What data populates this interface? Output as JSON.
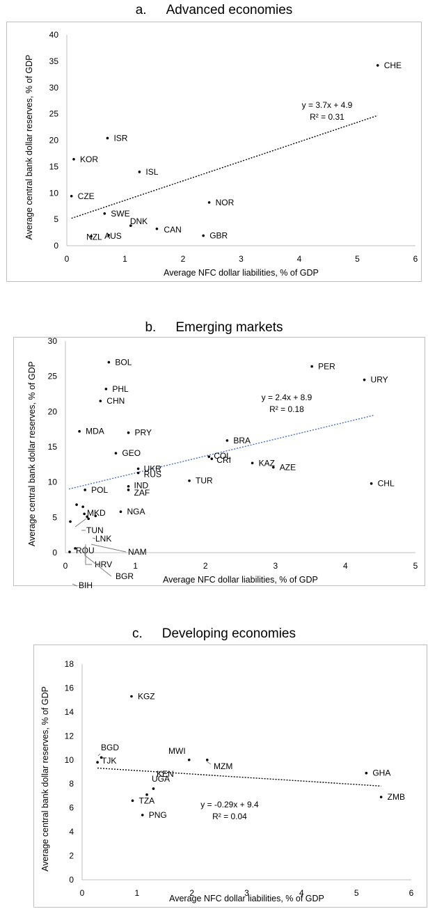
{
  "chart_data": [
    {
      "type": "scatter",
      "panel_letter": "a.",
      "title": "Advanced economies",
      "xlabel": "Average NFC dollar liabilities, % of GDP",
      "ylabel": "Average central bank dollar reserves, % of GDP",
      "xlim": [
        0,
        6
      ],
      "ylim": [
        0,
        40
      ],
      "xticks": [
        0,
        1,
        2,
        3,
        4,
        5,
        6
      ],
      "yticks": [
        0,
        5,
        10,
        15,
        20,
        25,
        30,
        35,
        40
      ],
      "grid": false,
      "points": [
        {
          "label": "CHE",
          "x": 5.35,
          "y": 34.2
        },
        {
          "label": "ISR",
          "x": 0.7,
          "y": 20.4
        },
        {
          "label": "KOR",
          "x": 0.12,
          "y": 16.4
        },
        {
          "label": "ISL",
          "x": 1.25,
          "y": 14.0
        },
        {
          "label": "CZE",
          "x": 0.08,
          "y": 9.4
        },
        {
          "label": "NOR",
          "x": 2.45,
          "y": 8.2
        },
        {
          "label": "SWE",
          "x": 0.65,
          "y": 6.1
        },
        {
          "label": "DNK",
          "x": 1.1,
          "y": 3.8
        },
        {
          "label": "CAN",
          "x": 1.55,
          "y": 3.2
        },
        {
          "label": "NZL",
          "x": 0.42,
          "y": 1.8
        },
        {
          "label": "AUS",
          "x": 0.72,
          "y": 2.0
        },
        {
          "label": "GBR",
          "x": 2.35,
          "y": 1.9
        }
      ],
      "trendline": {
        "slope": 3.7,
        "intercept": 4.9,
        "x_range": [
          0.08,
          5.35
        ],
        "color": "#000000",
        "equation": "y = 3.7x + 4.9",
        "r2": "R² = 0.31"
      }
    },
    {
      "type": "scatter",
      "panel_letter": "b.",
      "title": "Emerging markets",
      "xlabel": "Average NFC dollar liabilities, % of GDP",
      "ylabel": "Average central bank dollar reserves, % of GDP",
      "xlim": [
        0,
        5
      ],
      "ylim": [
        0,
        30
      ],
      "xticks": [
        0,
        1,
        2,
        3,
        4,
        5
      ],
      "yticks": [
        0,
        5,
        10,
        15,
        20,
        25,
        30
      ],
      "grid": false,
      "points": [
        {
          "label": "BOL",
          "x": 0.62,
          "y": 27.0
        },
        {
          "label": "PER",
          "x": 3.52,
          "y": 26.4
        },
        {
          "label": "URY",
          "x": 4.27,
          "y": 24.5
        },
        {
          "label": "PHL",
          "x": 0.58,
          "y": 23.2
        },
        {
          "label": "CHN",
          "x": 0.5,
          "y": 21.5
        },
        {
          "label": "MDA",
          "x": 0.2,
          "y": 17.2
        },
        {
          "label": "PRY",
          "x": 0.9,
          "y": 17.0
        },
        {
          "label": "BRA",
          "x": 2.31,
          "y": 15.9
        },
        {
          "label": "GEO",
          "x": 0.72,
          "y": 14.1
        },
        {
          "label": "COL",
          "x": 2.05,
          "y": 13.6
        },
        {
          "label": "CRI",
          "x": 2.09,
          "y": 13.3
        },
        {
          "label": "KAZ",
          "x": 2.67,
          "y": 12.7
        },
        {
          "label": "AZE",
          "x": 2.97,
          "y": 12.1
        },
        {
          "label": "UKR",
          "x": 1.04,
          "y": 11.9
        },
        {
          "label": "RUS",
          "x": 1.04,
          "y": 11.3
        },
        {
          "label": "TUR",
          "x": 1.77,
          "y": 10.2
        },
        {
          "label": "CHL",
          "x": 4.37,
          "y": 9.8
        },
        {
          "label": "IND",
          "x": 0.9,
          "y": 9.4
        },
        {
          "label": "ZAF",
          "x": 0.9,
          "y": 8.9
        },
        {
          "label": "POL",
          "x": 0.28,
          "y": 8.9
        },
        {
          "label": "MKD",
          "x": 0.16,
          "y": 6.8
        },
        {
          "label": "TUN",
          "x": 0.25,
          "y": 6.5
        },
        {
          "label": "NGA",
          "x": 0.79,
          "y": 5.8
        },
        {
          "label": "LNK",
          "x": 0.43,
          "y": 5.2
        },
        {
          "label": "NAM",
          "x": 0.31,
          "y": 5.1
        },
        {
          "label": "ROU",
          "x": 0.07,
          "y": 4.4
        },
        {
          "label": "HRV",
          "x": 0.33,
          "y": 4.8
        },
        {
          "label": "BGR",
          "x": 0.27,
          "y": 5.5
        },
        {
          "label": "BIH",
          "x": 0.14,
          "y": 0.6
        },
        {
          "label": "",
          "x": 0.06,
          "y": 0.1
        }
      ],
      "trendline": {
        "slope": 2.4,
        "intercept": 8.9,
        "x_range": [
          0.05,
          4.4
        ],
        "color": "#4472c4",
        "equation": "y = 2.4x + 8.9",
        "r2": "R² = 0.18"
      }
    },
    {
      "type": "scatter",
      "panel_letter": "c.",
      "title": "Developing economies",
      "xlabel": "Average NFC dollar liabilities, % of GDP",
      "ylabel": "Average central bank dollar reserves, % of GDP",
      "xlim": [
        0,
        6
      ],
      "ylim": [
        0,
        18
      ],
      "xticks": [
        0,
        1,
        2,
        3,
        4,
        5,
        6
      ],
      "yticks": [
        0,
        2,
        4,
        6,
        8,
        10,
        12,
        14,
        16,
        18
      ],
      "grid": false,
      "points": [
        {
          "label": "KGZ",
          "x": 0.9,
          "y": 15.3
        },
        {
          "label": "BGD",
          "x": 0.35,
          "y": 10.2
        },
        {
          "label": "TJK",
          "x": 0.28,
          "y": 9.8
        },
        {
          "label": "MWI",
          "x": 1.95,
          "y": 10.0
        },
        {
          "label": "MZM",
          "x": 2.28,
          "y": 10.0
        },
        {
          "label": "GHA",
          "x": 5.18,
          "y": 8.9
        },
        {
          "label": "ZMB",
          "x": 5.45,
          "y": 6.9
        },
        {
          "label": "KEN",
          "x": 1.3,
          "y": 7.6
        },
        {
          "label": "UGA",
          "x": 1.18,
          "y": 7.1
        },
        {
          "label": "TZA",
          "x": 0.92,
          "y": 6.6
        },
        {
          "label": "PNG",
          "x": 1.1,
          "y": 5.4
        }
      ],
      "trendline": {
        "slope": -0.29,
        "intercept": 9.4,
        "x_range": [
          0.28,
          5.45
        ],
        "color": "#000000",
        "equation": "y = -0.29x + 9.4",
        "r2": "R² = 0.04"
      }
    }
  ]
}
